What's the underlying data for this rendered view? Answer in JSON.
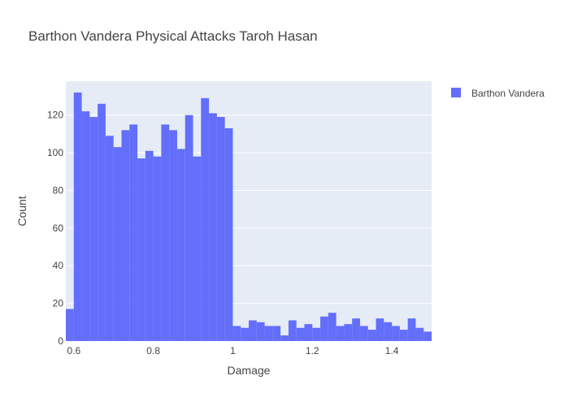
{
  "chart_data": {
    "type": "bar",
    "title": "Barthon Vandera Physical Attacks Taroh Hasan",
    "xlabel": "Damage",
    "ylabel": "Count",
    "xlim": [
      0.58,
      1.5
    ],
    "ylim": [
      0,
      138
    ],
    "bin_width": 0.02,
    "x_ticks": [
      0.6,
      0.8,
      1,
      1.2,
      1.4
    ],
    "x_tick_labels": [
      "0.6",
      "0.8",
      "1",
      "1.2",
      "1.4"
    ],
    "y_ticks": [
      0,
      20,
      40,
      60,
      80,
      100,
      120
    ],
    "y_tick_labels": [
      "0",
      "20",
      "40",
      "60",
      "80",
      "100",
      "120"
    ],
    "grid": true,
    "legend_position": "top-right",
    "colors": {
      "bar": "#636efa",
      "plot_bg": "#e5ecf6",
      "grid": "#ffffff"
    },
    "series": [
      {
        "name": "Barthon Vandera",
        "bin_starts": [
          0.58,
          0.6,
          0.62,
          0.64,
          0.66,
          0.68,
          0.7,
          0.72,
          0.74,
          0.76,
          0.78,
          0.8,
          0.82,
          0.84,
          0.86,
          0.88,
          0.9,
          0.92,
          0.94,
          0.96,
          0.98,
          1.0,
          1.02,
          1.04,
          1.06,
          1.08,
          1.1,
          1.12,
          1.14,
          1.16,
          1.18,
          1.2,
          1.22,
          1.24,
          1.26,
          1.28,
          1.3,
          1.32,
          1.34,
          1.36,
          1.38,
          1.4,
          1.42,
          1.44,
          1.46,
          1.48
        ],
        "values": [
          17,
          132,
          122,
          119,
          126,
          109,
          103,
          112,
          115,
          97,
          101,
          98,
          115,
          112,
          102,
          120,
          98,
          129,
          121,
          119,
          113,
          8,
          7,
          11,
          10,
          8,
          8,
          3,
          11,
          7,
          9,
          7,
          13,
          15,
          8,
          9,
          12,
          8,
          6,
          12,
          10,
          8,
          6,
          12,
          7,
          5
        ]
      }
    ]
  }
}
